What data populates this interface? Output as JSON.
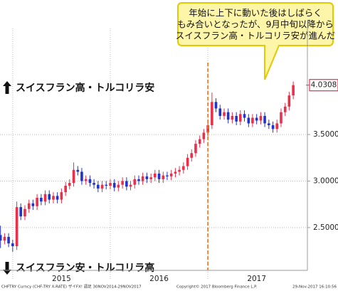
{
  "chart_data": {
    "type": "candlestick",
    "annotation": [
      "年始に上下に動いた後はしばらく",
      "もみ合いとなったが、9月中旬以降から",
      "スイスフラン高・トルコリラ安が進んだ"
    ],
    "up_label": "スイスフラン高・トルコリラ安",
    "down_label": "スイスフラン安・トルコリラ高",
    "footer": [
      "CHFTRY Curncy (CHF-TRY X-RATE) ザイFX! 週足 30NOV2014-29NOV2017",
      "Copyright© 2017 Bloomberg Finance L.P.",
      "29-Nov-2017 16:10:56"
    ],
    "up_color": "#e8304a",
    "down_color": "#2233cc",
    "event_color": "#f07020",
    "last_color": "#e8304a",
    "event_x": 2017,
    "xlim": [
      2014.87,
      2018.02
    ],
    "xticks": [
      {
        "value": 2015.5,
        "label": "2015"
      },
      {
        "value": 2016.5,
        "label": "2016"
      },
      {
        "value": 2017.5,
        "label": "2017"
      }
    ],
    "xgrid": [
      2015,
      2016,
      2017
    ],
    "ylim": [
      2.04,
      4.64
    ],
    "yticks": [
      {
        "value": 2.5,
        "label": "2.5000"
      },
      {
        "value": 3,
        "label": "3.0000"
      },
      {
        "value": 3.5,
        "label": "3.5000"
      }
    ],
    "grid": true,
    "x": [
      2014.875,
      2014.917,
      2014.958,
      2015,
      2015.042,
      2015.083,
      2015.125,
      2015.167,
      2015.208,
      2015.25,
      2015.292,
      2015.333,
      2015.375,
      2015.417,
      2015.458,
      2015.5,
      2015.542,
      2015.583,
      2015.625,
      2015.667,
      2015.708,
      2015.75,
      2015.792,
      2015.833,
      2015.875,
      2015.917,
      2015.958,
      2016,
      2016.042,
      2016.083,
      2016.125,
      2016.167,
      2016.208,
      2016.25,
      2016.292,
      2016.333,
      2016.375,
      2016.417,
      2016.458,
      2016.5,
      2016.542,
      2016.583,
      2016.625,
      2016.667,
      2016.708,
      2016.75,
      2016.792,
      2016.833,
      2016.875,
      2016.917,
      2016.958,
      2017,
      2017.042,
      2017.083,
      2017.125,
      2017.167,
      2017.208,
      2017.25,
      2017.292,
      2017.333,
      2017.375,
      2017.417,
      2017.458,
      2017.5,
      2017.542,
      2017.583,
      2017.625,
      2017.667,
      2017.708,
      2017.75,
      2017.792,
      2017.833,
      2017.875
    ],
    "open": [
      2.42,
      2.36,
      2.4,
      2.33,
      2.3,
      2.72,
      2.62,
      2.7,
      2.76,
      2.73,
      2.82,
      2.78,
      2.86,
      2.8,
      2.84,
      2.8,
      2.88,
      2.95,
      2.98,
      3.12,
      3.1,
      3.0,
      3.02,
      2.98,
      2.96,
      2.92,
      2.96,
      2.95,
      2.98,
      2.93,
      2.96,
      3.0,
      2.94,
      2.96,
      3.02,
      3.0,
      3.05,
      3.02,
      3.04,
      3.08,
      3.02,
      3.06,
      3.05,
      3.08,
      3.1,
      3.12,
      3.16,
      3.25,
      3.3,
      3.4,
      3.45,
      3.52,
      3.6,
      3.85,
      3.78,
      3.7,
      3.74,
      3.66,
      3.7,
      3.64,
      3.72,
      3.68,
      3.62,
      3.68,
      3.65,
      3.7,
      3.62,
      3.6,
      3.56,
      3.62,
      3.74,
      3.8,
      3.92
    ],
    "high": [
      2.52,
      2.44,
      2.44,
      2.37,
      2.78,
      2.76,
      2.74,
      2.8,
      2.8,
      2.86,
      2.86,
      2.9,
      2.9,
      2.88,
      2.88,
      2.92,
      2.99,
      3.02,
      3.2,
      3.16,
      3.14,
      3.06,
      3.06,
      3.02,
      3.0,
      3.0,
      3.0,
      3.02,
      3.02,
      3.0,
      3.04,
      3.04,
      3.0,
      3.06,
      3.06,
      3.09,
      3.09,
      3.08,
      3.12,
      3.12,
      3.1,
      3.1,
      3.12,
      3.14,
      3.16,
      3.2,
      3.29,
      3.34,
      3.44,
      3.49,
      3.56,
      3.64,
      3.95,
      3.89,
      3.82,
      3.78,
      3.78,
      3.74,
      3.74,
      3.76,
      3.76,
      3.72,
      3.72,
      3.72,
      3.74,
      3.74,
      3.66,
      3.64,
      3.66,
      3.78,
      3.84,
      3.96,
      4.07
    ],
    "low": [
      2.28,
      2.32,
      2.29,
      2.24,
      2.26,
      2.58,
      2.58,
      2.66,
      2.69,
      2.69,
      2.74,
      2.74,
      2.76,
      2.76,
      2.76,
      2.76,
      2.84,
      2.91,
      2.94,
      3.06,
      2.96,
      2.96,
      2.94,
      2.92,
      2.88,
      2.88,
      2.91,
      2.91,
      2.89,
      2.89,
      2.92,
      2.9,
      2.9,
      2.92,
      2.96,
      2.96,
      2.98,
      2.98,
      3.0,
      2.98,
      2.98,
      3.01,
      3.01,
      3.04,
      3.06,
      3.08,
      3.12,
      3.21,
      3.26,
      3.36,
      3.41,
      3.48,
      3.56,
      3.74,
      3.66,
      3.66,
      3.62,
      3.62,
      3.6,
      3.6,
      3.64,
      3.58,
      3.58,
      3.61,
      3.61,
      3.58,
      3.56,
      3.52,
      3.52,
      3.58,
      3.7,
      3.76,
      3.88
    ],
    "close": [
      2.36,
      2.4,
      2.33,
      2.3,
      2.72,
      2.62,
      2.7,
      2.76,
      2.73,
      2.82,
      2.78,
      2.86,
      2.8,
      2.84,
      2.8,
      2.88,
      2.95,
      2.98,
      3.12,
      3.1,
      3.0,
      3.02,
      2.98,
      2.96,
      2.92,
      2.96,
      2.95,
      2.98,
      2.93,
      2.96,
      3.0,
      2.94,
      2.96,
      3.02,
      3.0,
      3.05,
      3.02,
      3.04,
      3.08,
      3.02,
      3.06,
      3.05,
      3.08,
      3.1,
      3.12,
      3.16,
      3.25,
      3.3,
      3.4,
      3.45,
      3.52,
      3.6,
      3.85,
      3.78,
      3.7,
      3.74,
      3.66,
      3.7,
      3.64,
      3.72,
      3.68,
      3.62,
      3.68,
      3.65,
      3.7,
      3.62,
      3.6,
      3.56,
      3.62,
      3.74,
      3.8,
      3.92,
      4.0308
    ]
  }
}
